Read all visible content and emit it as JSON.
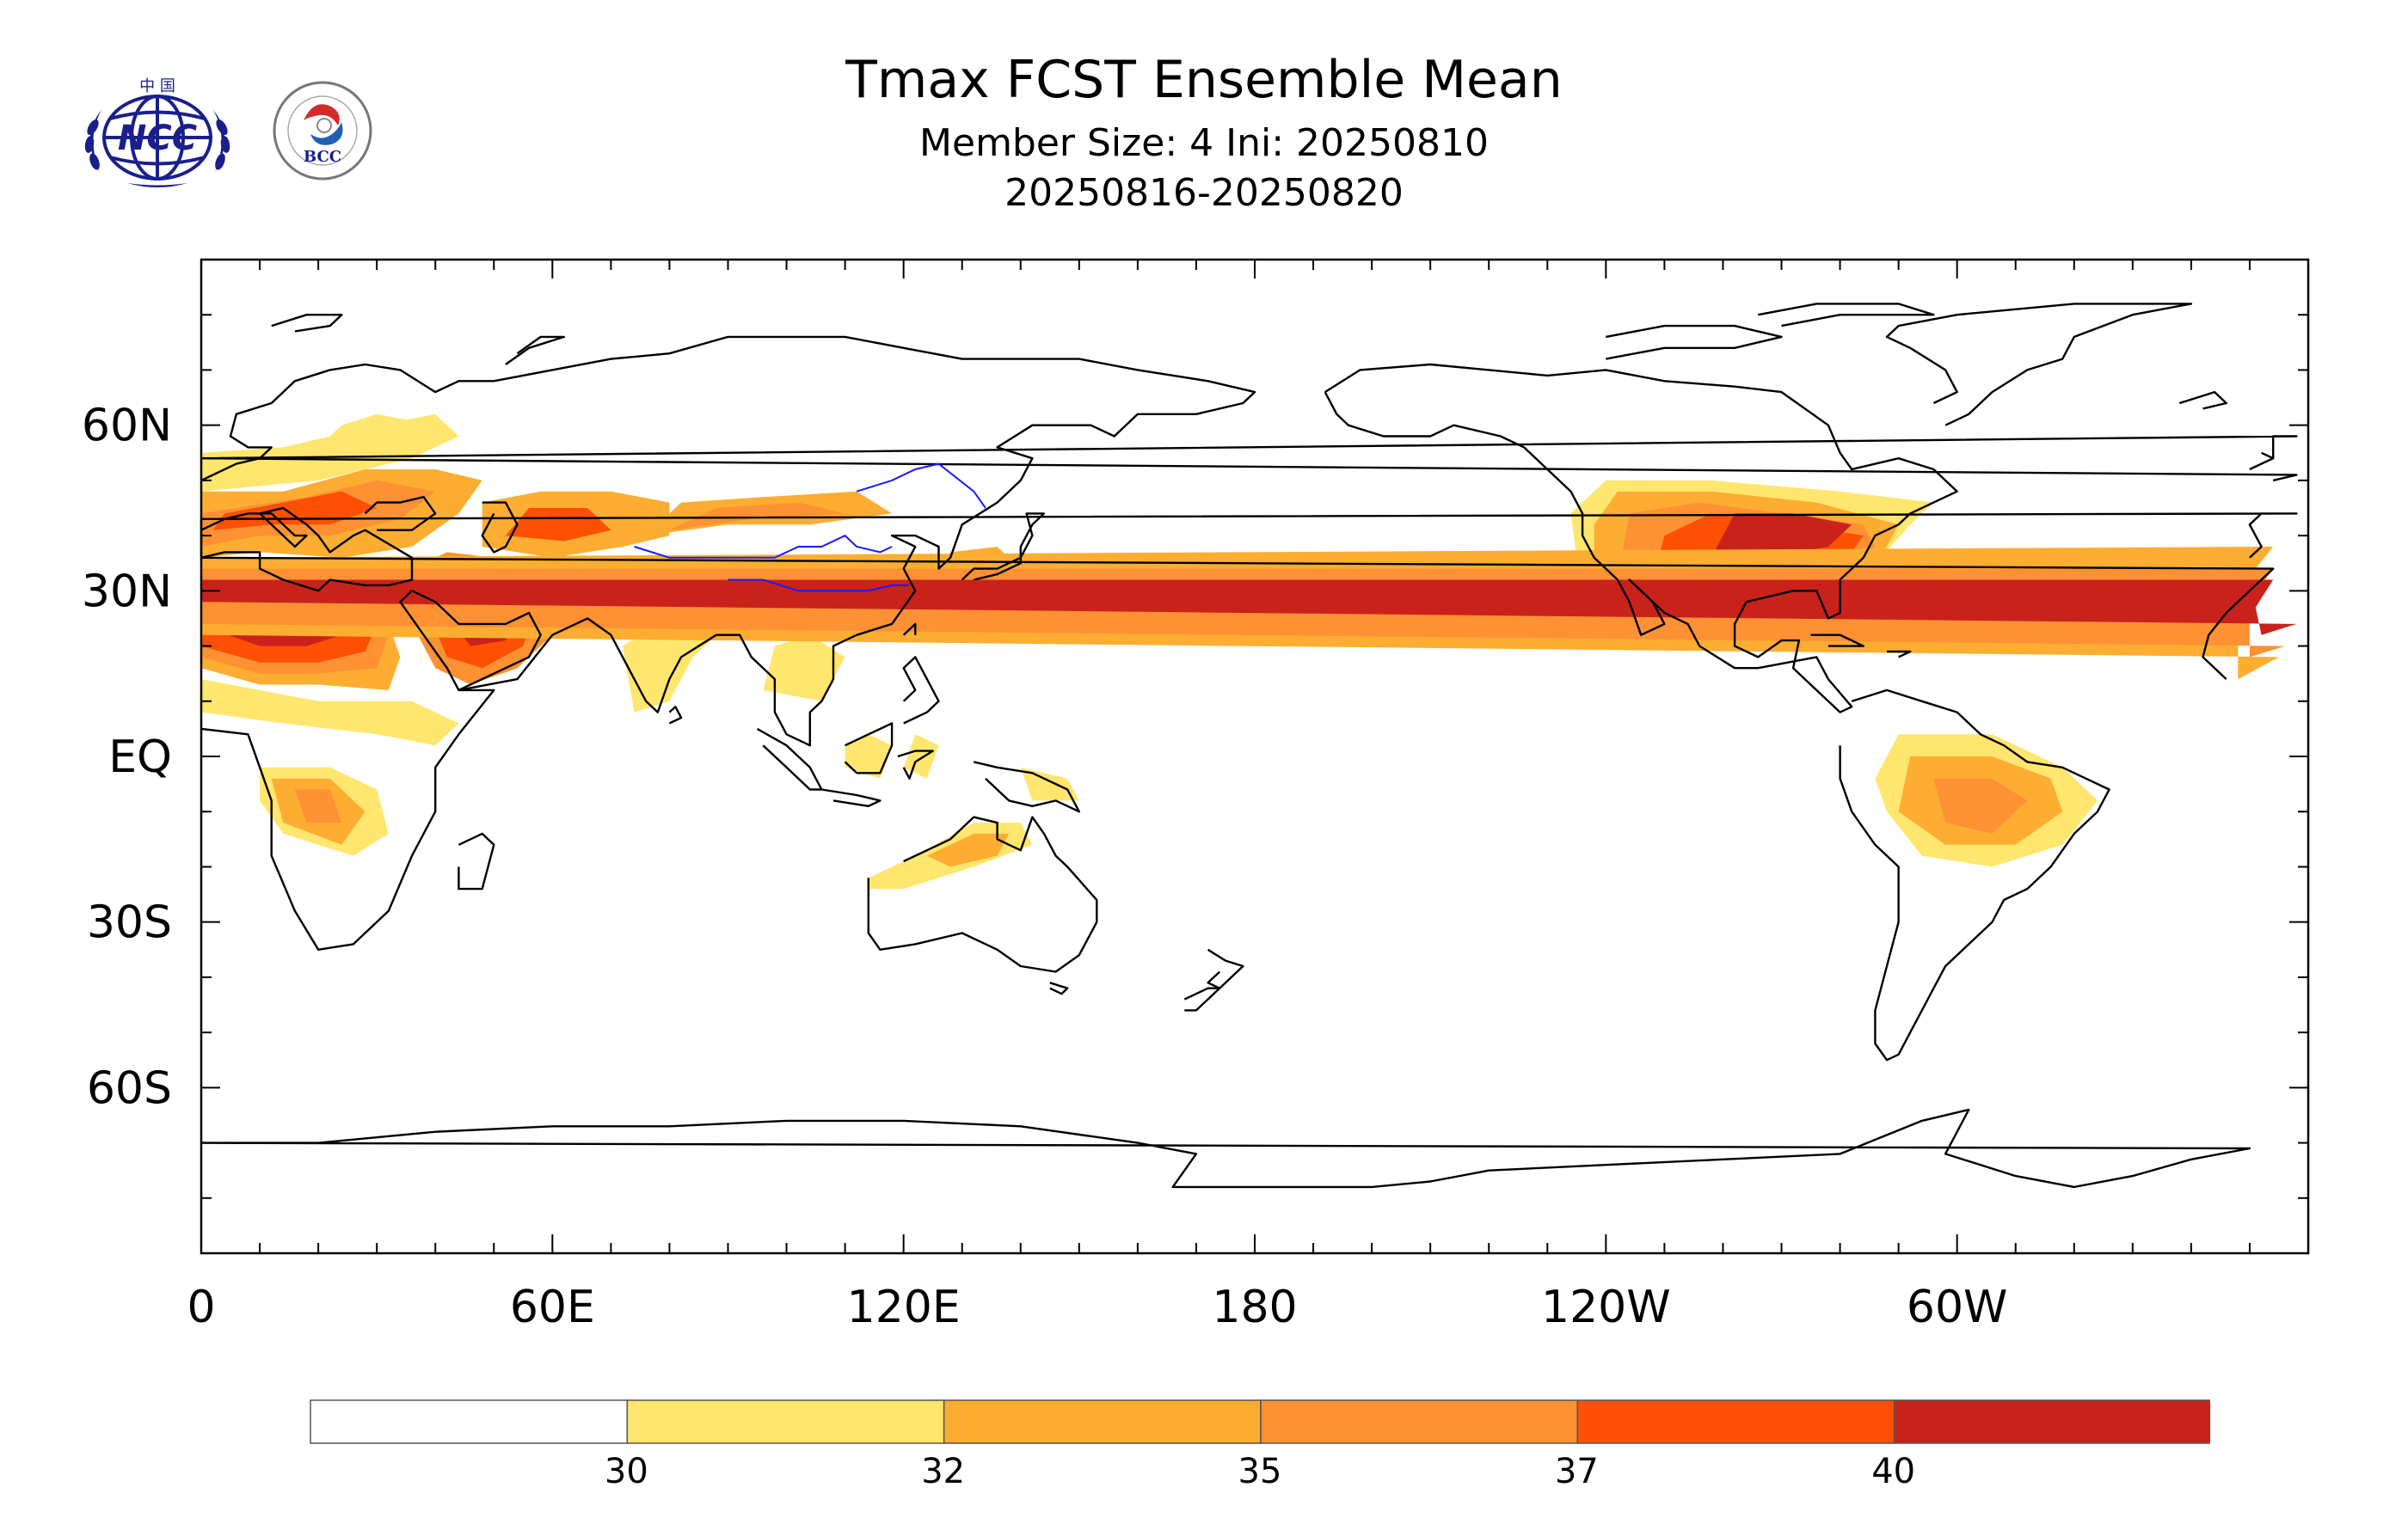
{
  "header": {
    "title": "Tmax FCST Ensemble Mean",
    "subtitle_line1": "Member Size: 4  Ini: 20250810",
    "subtitle_line2": "20250816-20250820",
    "logos": [
      {
        "name": "ncc-logo",
        "text": "NCC",
        "top_text": "中 国"
      },
      {
        "name": "bcc-logo",
        "text": "BCC",
        "ring_text": "BEIJING CLIMATE CENTER"
      }
    ]
  },
  "map": {
    "projection": "equirectangular",
    "central_longitude": 180,
    "lon_range": [
      0,
      360
    ],
    "lat_range": [
      -90,
      90
    ],
    "lat_labels": [
      "60N",
      "30N",
      "EQ",
      "30S",
      "60S"
    ],
    "lon_labels": [
      "0",
      "60E",
      "120E",
      "180",
      "120W",
      "60W"
    ]
  },
  "legend": {
    "levels": [
      "30",
      "32",
      "35",
      "37",
      "40"
    ],
    "colors": [
      "#ffffff",
      "#ffe66e",
      "#fdad32",
      "#fd9134",
      "#fd5003",
      "#c9221a"
    ]
  }
}
